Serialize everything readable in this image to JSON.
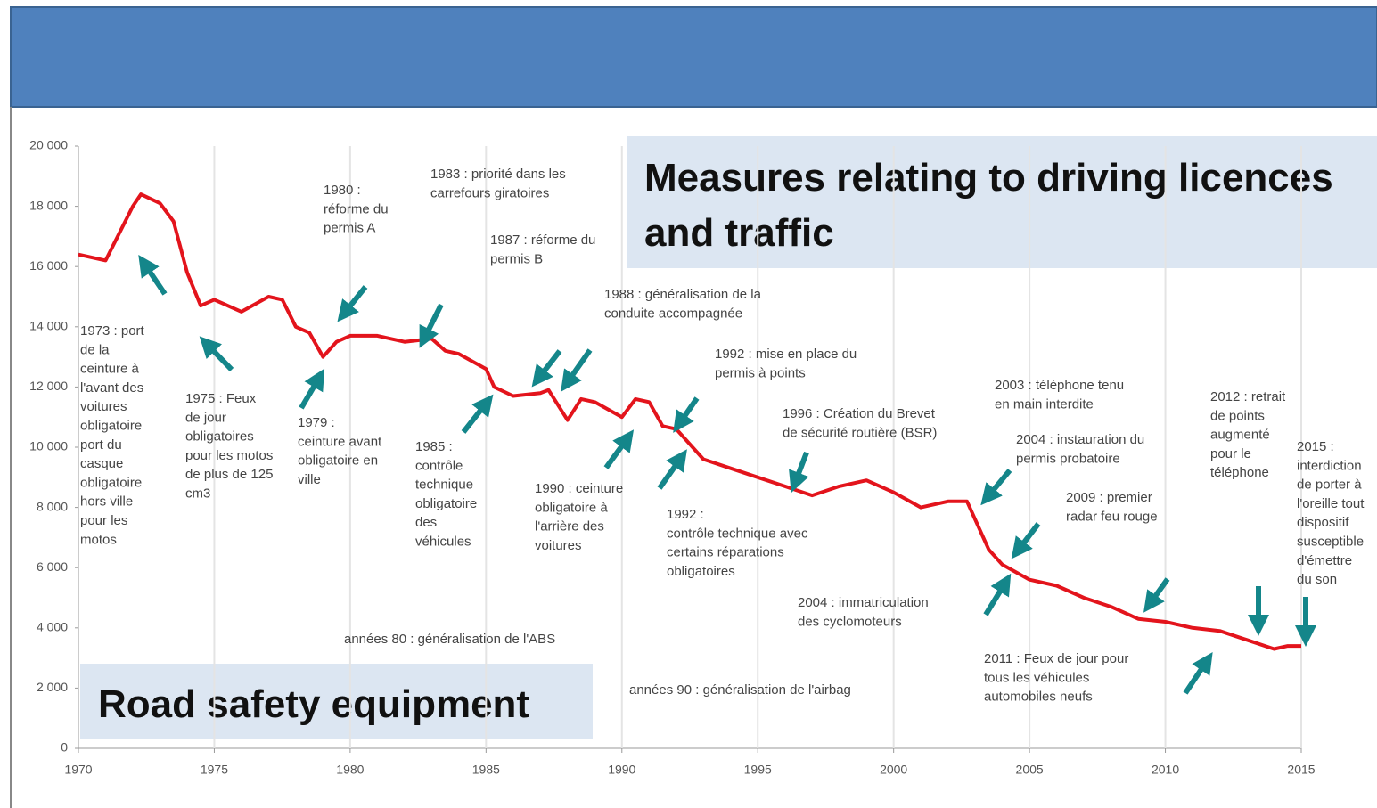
{
  "chart_data": {
    "type": "line",
    "boxes": [
      "Measures relating to driving licences and traffic",
      "Road safety equipment"
    ],
    "x": [
      1970,
      1971,
      1972,
      1972.3,
      1973,
      1973.5,
      1974,
      1974.5,
      1975,
      1976,
      1977,
      1977.5,
      1978,
      1978.5,
      1979,
      1979.5,
      1980,
      1981,
      1982,
      1983,
      1983.5,
      1984,
      1985,
      1985.3,
      1986,
      1987,
      1987.3,
      1988,
      1988.5,
      1989,
      1990,
      1990.5,
      1991,
      1991.5,
      1992,
      1993,
      1994,
      1995,
      1996,
      1997,
      1998,
      1999,
      2000,
      2001,
      2002,
      2002.7,
      2003,
      2003.5,
      2004,
      2005,
      2006,
      2007,
      2008,
      2009,
      2010,
      2011,
      2012,
      2013,
      2014,
      2014.5,
      2015
    ],
    "series": [
      {
        "color": "#e3141c",
        "values": [
          16400,
          16200,
          18000,
          18400,
          18100,
          17500,
          15800,
          14700,
          14900,
          14500,
          15000,
          14900,
          14000,
          13800,
          13000,
          13500,
          13700,
          13700,
          13500,
          13600,
          13200,
          13100,
          12600,
          12000,
          11700,
          11800,
          11900,
          10900,
          11600,
          11500,
          11000,
          11600,
          11500,
          10700,
          10600,
          9600,
          9300,
          9000,
          8700,
          8400,
          8700,
          8900,
          8500,
          8000,
          8200,
          8200,
          7600,
          6600,
          6100,
          5600,
          5400,
          5000,
          4700,
          4300,
          4200,
          4000,
          3900,
          3600,
          3300,
          3400,
          3400
        ]
      }
    ],
    "xlim": [
      1970,
      2015
    ],
    "xticks": [
      1970,
      1975,
      1980,
      1985,
      1990,
      1995,
      2000,
      2005,
      2010,
      2015
    ],
    "ylim": [
      0,
      20000
    ],
    "yticks": [
      0,
      {
        "value": 2000,
        "label": "2 000"
      },
      {
        "value": 4000,
        "label": "4 000"
      },
      {
        "value": 6000,
        "label": "6 000"
      },
      {
        "value": 8000,
        "label": "8 000"
      },
      {
        "value": 10000,
        "label": "10 000"
      },
      {
        "value": 12000,
        "label": "12 000"
      },
      {
        "value": 14000,
        "label": "14 000"
      },
      {
        "value": 16000,
        "label": "16 000"
      },
      {
        "value": 18000,
        "label": "18 000"
      },
      {
        "value": 20000,
        "label": "20 000"
      }
    ],
    "grid": true,
    "annotations": [
      [
        "1973 : port",
        "de la",
        "ceinture à",
        "l'avant des",
        "voitures",
        "obligatoire",
        "port du",
        "casque",
        "obligatoire",
        "hors ville",
        "pour les",
        "motos"
      ],
      [
        "1975 : Feux",
        "de jour",
        "obligatoires",
        "pour les motos",
        "de plus de 125",
        "cm3"
      ],
      [
        "1979 :",
        "ceinture avant",
        "obligatoire en",
        "ville"
      ],
      [
        "1980 :",
        "réforme du",
        "permis A"
      ],
      [
        "1983 : priorité dans les",
        "carrefours giratoires"
      ],
      [
        "1987 : réforme du",
        "permis B"
      ],
      [
        "1985 :",
        "contrôle",
        "technique",
        "obligatoire",
        "des",
        "véhicules"
      ],
      [
        "1988 : généralisation de la",
        "conduite accompagnée"
      ],
      [
        "1990 : ceinture",
        "obligatoire à",
        "l'arrière des",
        "voitures"
      ],
      [
        "1992 : mise en place du",
        "permis à points"
      ],
      [
        "1992 :",
        "contrôle technique avec",
        "certains réparations",
        "obligatoires"
      ],
      [
        "1996 : Création du Brevet",
        "de sécurité routière (BSR)"
      ],
      [
        "2003 : téléphone tenu",
        "en main interdite"
      ],
      [
        "2004 : instauration du",
        "permis probatoire"
      ],
      [
        "2009 : premier",
        "radar feu rouge"
      ],
      [
        "2012 : retrait",
        "de points",
        "augmenté",
        "pour le",
        "téléphone"
      ],
      [
        "2015 :",
        "interdiction",
        "de porter à",
        "l'oreille tout",
        "dispositif",
        "susceptible",
        "d'émettre",
        "du son"
      ],
      [
        "2004 : immatriculation",
        "des cyclomoteurs"
      ],
      [
        "2011 : Feux de jour pour",
        "tous les véhicules",
        "automobiles neufs"
      ],
      [
        "années 80 : généralisation de l'ABS"
      ],
      [
        "années 90 : généralisation de l'airbag"
      ]
    ]
  }
}
